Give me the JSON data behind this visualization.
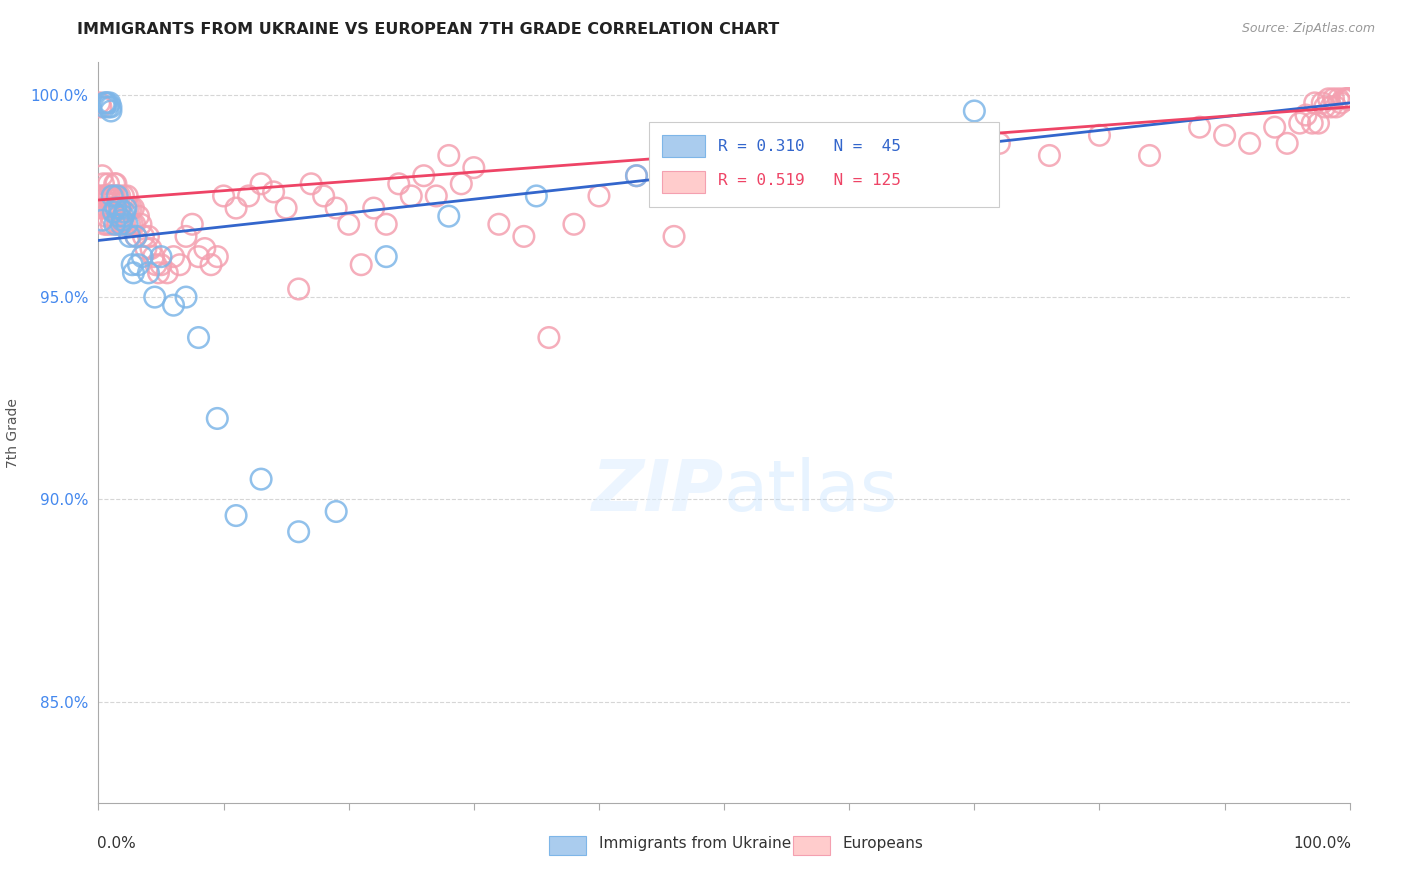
{
  "title": "IMMIGRANTS FROM UKRAINE VS EUROPEAN 7TH GRADE CORRELATION CHART",
  "source": "Source: ZipAtlas.com",
  "ylabel": "7th Grade",
  "xlim": [
    0.0,
    1.0
  ],
  "ylim": [
    0.825,
    1.008
  ],
  "yticks": [
    0.85,
    0.9,
    0.95,
    1.0
  ],
  "ytick_labels": [
    "85.0%",
    "90.0%",
    "95.0%",
    "100.0%"
  ],
  "ukraine_R": 0.31,
  "ukraine_N": 45,
  "european_R": 0.519,
  "european_N": 125,
  "ukraine_color": "#7EB6E8",
  "european_color": "#F4A0B0",
  "legend_ukraine": "Immigrants from Ukraine",
  "legend_european": "Europeans",
  "ukraine_line_start_y": 0.964,
  "ukraine_line_end_y": 0.998,
  "european_line_start_y": 0.974,
  "european_line_end_y": 0.997,
  "ukraine_scatter_x": [
    0.003,
    0.005,
    0.005,
    0.006,
    0.007,
    0.008,
    0.009,
    0.01,
    0.01,
    0.011,
    0.012,
    0.013,
    0.014,
    0.015,
    0.016,
    0.017,
    0.018,
    0.019,
    0.02,
    0.021,
    0.022,
    0.023,
    0.025,
    0.027,
    0.028,
    0.03,
    0.032,
    0.035,
    0.04,
    0.045,
    0.05,
    0.06,
    0.07,
    0.08,
    0.095,
    0.11,
    0.13,
    0.16,
    0.19,
    0.23,
    0.28,
    0.35,
    0.43,
    0.55,
    0.7
  ],
  "ukraine_scatter_y": [
    0.969,
    0.997,
    0.998,
    0.998,
    0.998,
    0.997,
    0.998,
    0.996,
    0.997,
    0.975,
    0.971,
    0.968,
    0.972,
    0.975,
    0.97,
    0.972,
    0.968,
    0.969,
    0.97,
    0.971,
    0.972,
    0.968,
    0.965,
    0.958,
    0.956,
    0.965,
    0.958,
    0.96,
    0.956,
    0.95,
    0.96,
    0.948,
    0.95,
    0.94,
    0.92,
    0.896,
    0.905,
    0.892,
    0.897,
    0.96,
    0.97,
    0.975,
    0.98,
    0.99,
    0.996
  ],
  "european_scatter_x": [
    0.001,
    0.002,
    0.003,
    0.003,
    0.004,
    0.004,
    0.005,
    0.005,
    0.006,
    0.006,
    0.007,
    0.007,
    0.008,
    0.008,
    0.009,
    0.009,
    0.01,
    0.01,
    0.011,
    0.011,
    0.012,
    0.012,
    0.013,
    0.013,
    0.014,
    0.014,
    0.015,
    0.015,
    0.016,
    0.016,
    0.017,
    0.018,
    0.019,
    0.02,
    0.021,
    0.022,
    0.023,
    0.024,
    0.025,
    0.026,
    0.027,
    0.028,
    0.029,
    0.03,
    0.032,
    0.034,
    0.036,
    0.038,
    0.04,
    0.042,
    0.044,
    0.046,
    0.048,
    0.05,
    0.055,
    0.06,
    0.065,
    0.07,
    0.075,
    0.08,
    0.085,
    0.09,
    0.095,
    0.1,
    0.11,
    0.12,
    0.13,
    0.14,
    0.15,
    0.16,
    0.17,
    0.18,
    0.19,
    0.2,
    0.21,
    0.22,
    0.23,
    0.24,
    0.25,
    0.26,
    0.27,
    0.28,
    0.29,
    0.3,
    0.32,
    0.34,
    0.36,
    0.38,
    0.4,
    0.43,
    0.46,
    0.49,
    0.53,
    0.56,
    0.6,
    0.64,
    0.68,
    0.72,
    0.76,
    0.8,
    0.84,
    0.88,
    0.9,
    0.92,
    0.94,
    0.95,
    0.96,
    0.965,
    0.97,
    0.972,
    0.975,
    0.978,
    0.98,
    0.983,
    0.985,
    0.987,
    0.989,
    0.991,
    0.993,
    0.995,
    0.997,
    0.998,
    0.999,
    0.999,
    1.0
  ],
  "european_scatter_y": [
    0.998,
    0.997,
    0.98,
    0.975,
    0.972,
    0.978,
    0.975,
    0.968,
    0.975,
    0.97,
    0.972,
    0.968,
    0.975,
    0.978,
    0.972,
    0.975,
    0.97,
    0.968,
    0.975,
    0.972,
    0.975,
    0.972,
    0.978,
    0.975,
    0.972,
    0.978,
    0.975,
    0.968,
    0.972,
    0.968,
    0.975,
    0.972,
    0.968,
    0.975,
    0.968,
    0.972,
    0.975,
    0.972,
    0.968,
    0.972,
    0.968,
    0.972,
    0.968,
    0.965,
    0.97,
    0.968,
    0.965,
    0.962,
    0.965,
    0.962,
    0.96,
    0.958,
    0.956,
    0.958,
    0.956,
    0.96,
    0.958,
    0.965,
    0.968,
    0.96,
    0.962,
    0.958,
    0.96,
    0.975,
    0.972,
    0.975,
    0.978,
    0.976,
    0.972,
    0.952,
    0.978,
    0.975,
    0.972,
    0.968,
    0.958,
    0.972,
    0.968,
    0.978,
    0.975,
    0.98,
    0.975,
    0.985,
    0.978,
    0.982,
    0.968,
    0.965,
    0.94,
    0.968,
    0.975,
    0.98,
    0.965,
    0.978,
    0.982,
    0.975,
    0.985,
    0.988,
    0.99,
    0.988,
    0.985,
    0.99,
    0.985,
    0.992,
    0.99,
    0.988,
    0.992,
    0.988,
    0.993,
    0.995,
    0.993,
    0.998,
    0.993,
    0.998,
    0.997,
    0.999,
    0.997,
    0.999,
    0.997,
    0.999,
    0.998,
    0.999,
    0.999,
    0.999,
    0.999,
    0.999,
    0.999
  ]
}
